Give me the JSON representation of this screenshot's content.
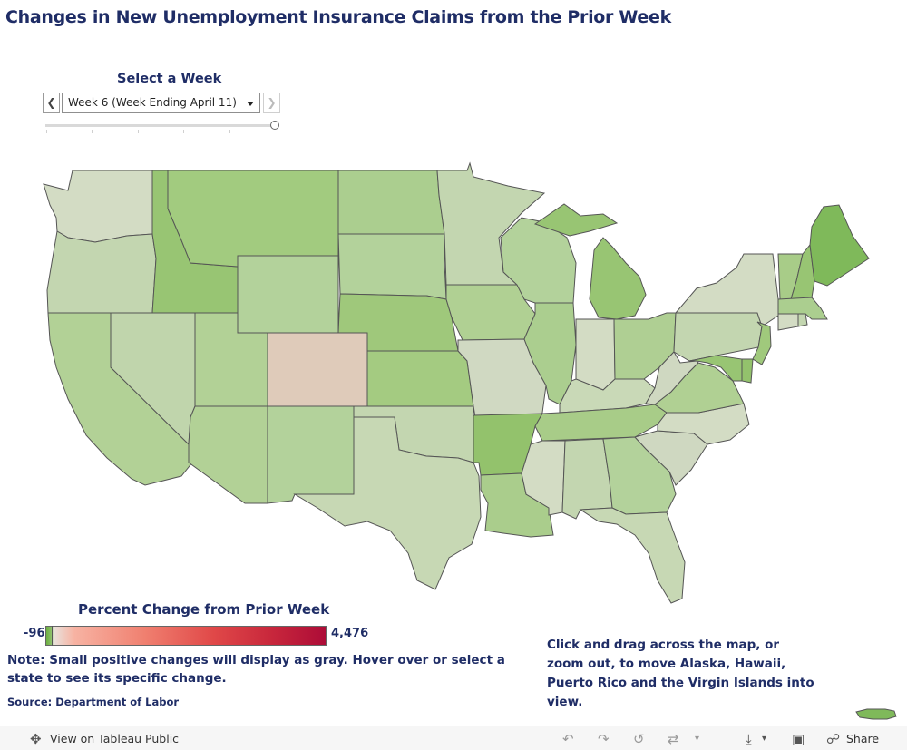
{
  "title": "Changes in New Unemployment Insurance Claims from the Prior Week",
  "week_filter": {
    "label": "Select a Week",
    "selected": "Week 6 (Week Ending April 11)"
  },
  "legend": {
    "title": "Percent Change from Prior Week",
    "min": "-96",
    "max": "4,476",
    "colors": {
      "decrease": "#6bae3f",
      "neutral": "#e8e2dc",
      "increase": "#ad0c37"
    }
  },
  "note": "Note: Small positive changes will display as gray. Hover over or select a state to see its specific change.",
  "source": "Source: Department of Labor",
  "hint": "Click and drag across the map, or zoom out, to move Alaska, Hawaii, Puerto Rico and the Virgin Islands into view.",
  "toolbar": {
    "view_label": "View on Tableau Public",
    "share_label": "Share"
  },
  "state_colors": {
    "WA": "#d3dcc4",
    "OR": "#c3d6b0",
    "CA": "#b2d196",
    "ID": "#98c573",
    "MT": "#a2cb7f",
    "WY": "#b3d29b",
    "NV": "#c0d5ac",
    "UT": "#b2d196",
    "AZ": "#b2d196",
    "CO": "#dfcbba",
    "NM": "#b3d29b",
    "ND": "#abce8f",
    "SD": "#b3d29b",
    "NE": "#9fc87b",
    "KS": "#a4cb81",
    "OK": "#c3d6b0",
    "TX": "#c7d8b4",
    "MN": "#c3d6b0",
    "IA": "#b0d093",
    "MO": "#d0d9c2",
    "AR": "#93c26c",
    "LA": "#aacd8c",
    "WI": "#b3d29b",
    "IL": "#abce8f",
    "MI": "#98c573",
    "IN": "#d3dcc4",
    "KY": "#c9d9b7",
    "TN": "#a8cc88",
    "MS": "#d3dcc4",
    "AL": "#c3d6b0",
    "OH": "#afcf93",
    "GA": "#b3d29b",
    "FL": "#c7d8b4",
    "SC": "#cfd8c1",
    "NC": "#d3dcc4",
    "VA": "#b0d093",
    "WV": "#cfd8c1",
    "PA": "#c3d6b0",
    "NY": "#d3dcc4",
    "VT": "#a8cc88",
    "NH": "#98c573",
    "ME": "#7fb95a",
    "MA": "#abce8f",
    "CT": "#d3dcc4",
    "RI": "#c3d6b0",
    "NJ": "#a0c97c",
    "DE": "#93c26c",
    "MD": "#98c573",
    "PR": "#7fb95a"
  }
}
